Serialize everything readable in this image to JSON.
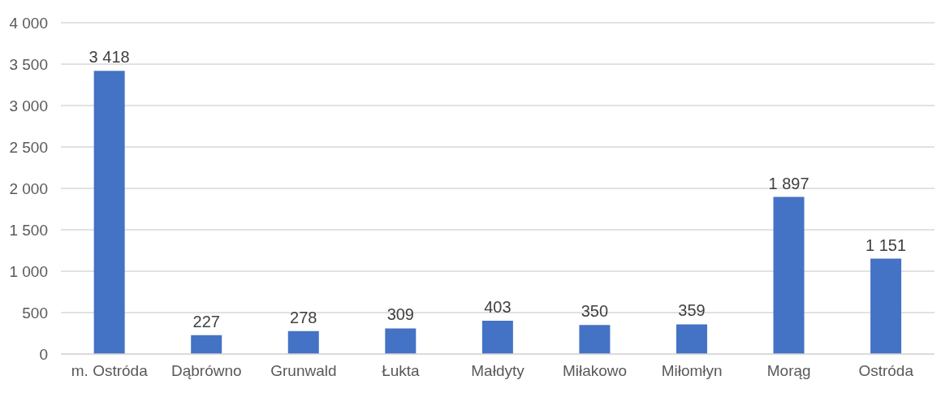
{
  "chart_data": {
    "type": "bar",
    "categories": [
      "m. Ostróda",
      "Dąbrówno",
      "Grunwald",
      "Łukta",
      "Małdyty",
      "Miłakowo",
      "Miłomłyn",
      "Morąg",
      "Ostróda"
    ],
    "values": [
      3418,
      227,
      278,
      309,
      403,
      350,
      359,
      1897,
      1151
    ],
    "value_labels": [
      "3 418",
      "227",
      "278",
      "309",
      "403",
      "350",
      "359",
      "1 897",
      "1 151"
    ],
    "color": "#4472c4",
    "ylim": [
      0,
      4000
    ],
    "yticks": [
      0,
      {
        "value": 500,
        "label": "500"
      },
      {
        "value": 1000,
        "label": "1 000"
      },
      {
        "value": 1500,
        "label": "1 500"
      },
      {
        "value": 2000,
        "label": "2 000"
      },
      {
        "value": 2500,
        "label": "2 500"
      },
      {
        "value": 3000,
        "label": "3 000"
      },
      {
        "value": 3500,
        "label": "3 500"
      },
      {
        "value": 4000,
        "label": "4 000"
      }
    ],
    "grid": "y",
    "legend": false
  }
}
